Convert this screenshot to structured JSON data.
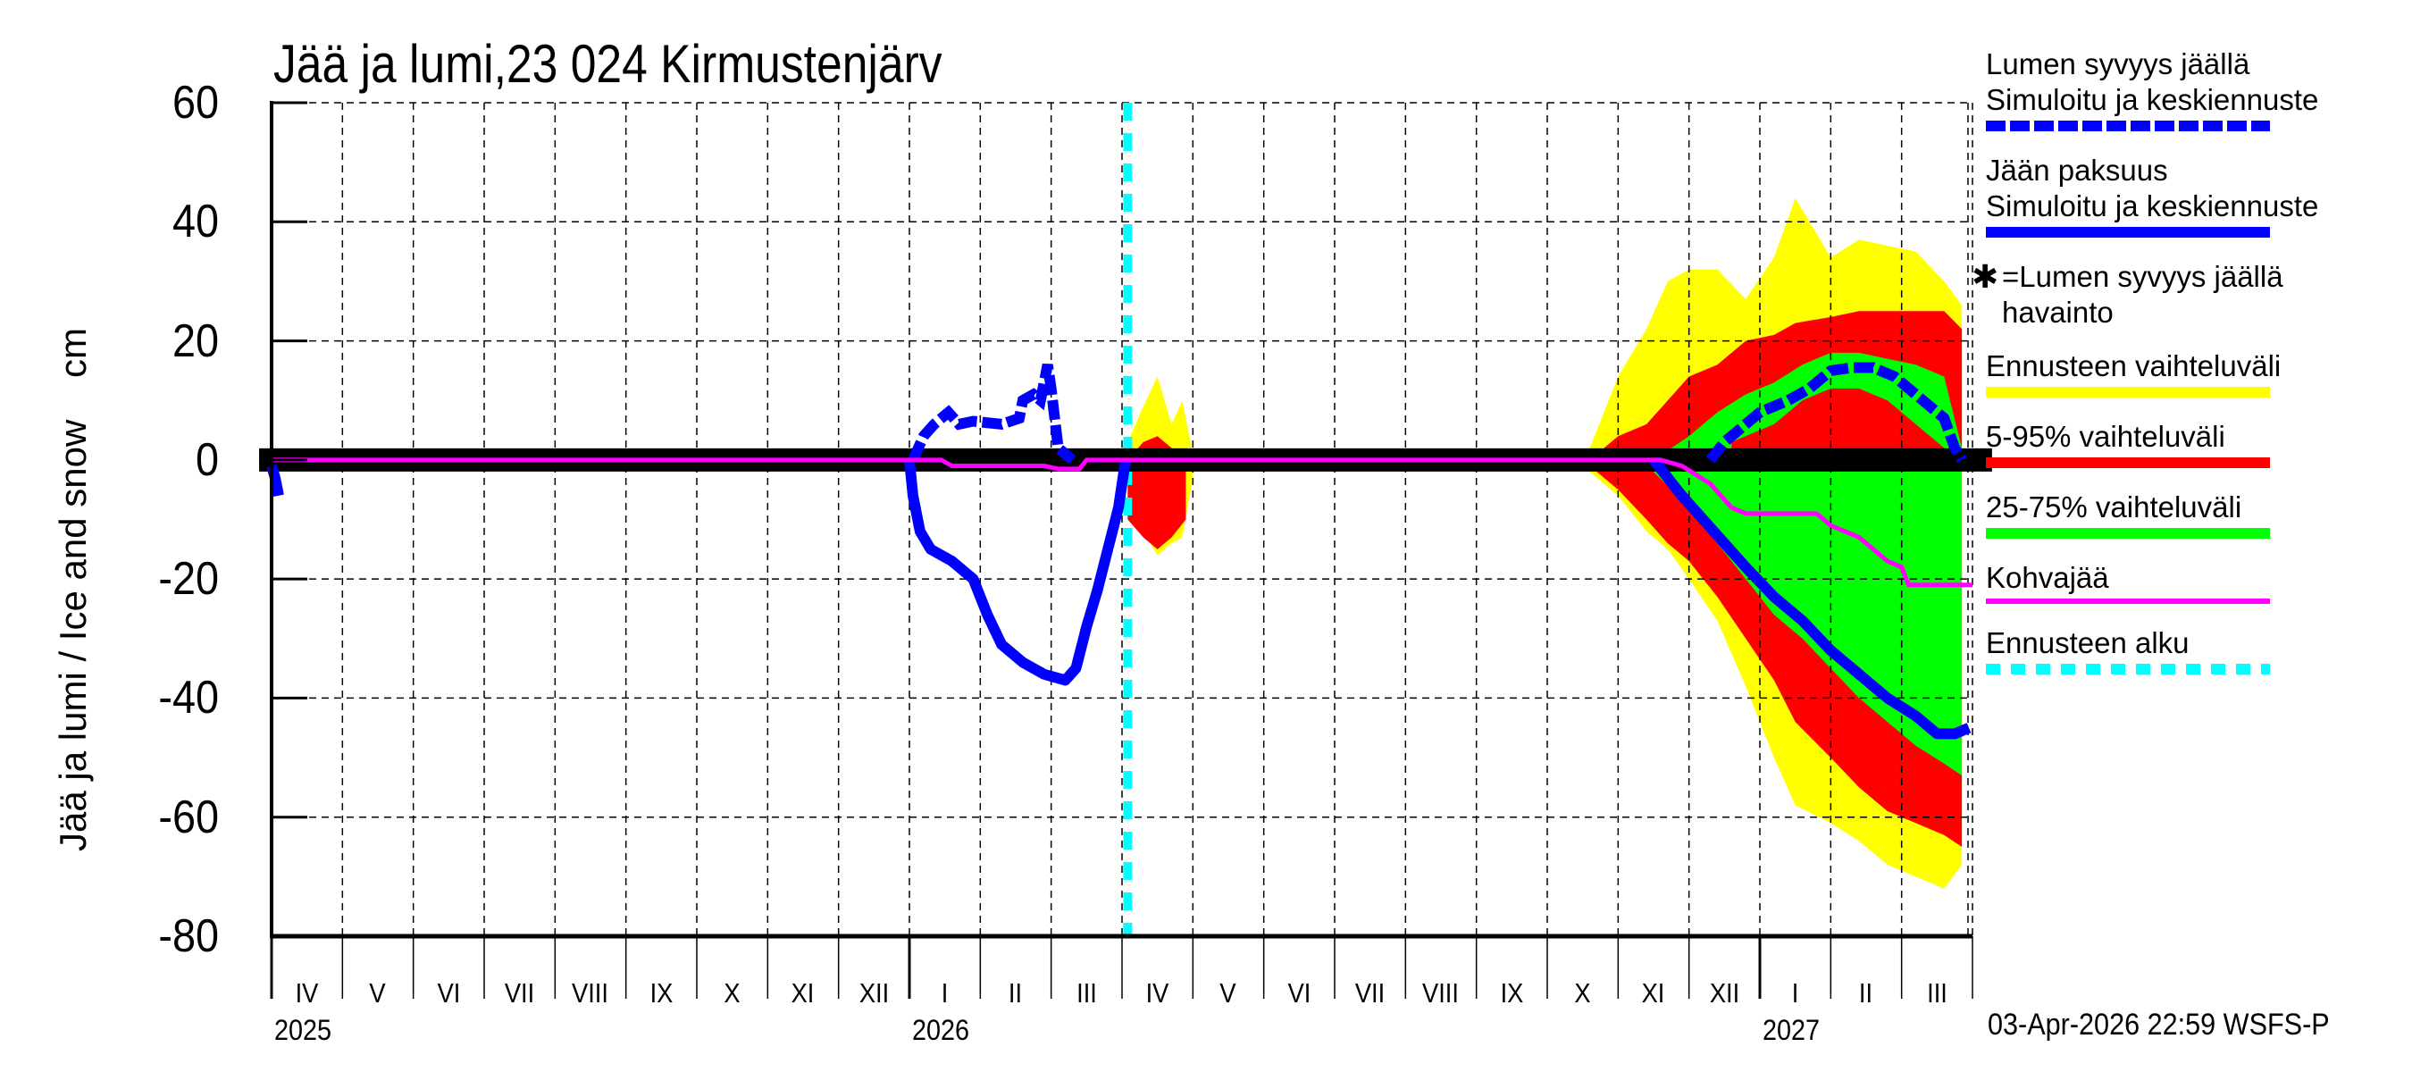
{
  "title": "Jää ja lumi,23 024 Kirmustenjärv",
  "y_axis": {
    "label": "Jää ja lumi / Ice and snow    cm",
    "ticks": [
      "60",
      "40",
      "20",
      "0",
      "-20",
      "-40",
      "-60",
      "-80"
    ]
  },
  "x_axis": {
    "months": [
      "IV",
      "V",
      "VI",
      "VII",
      "VIII",
      "IX",
      "X",
      "XI",
      "XII",
      "I",
      "II",
      "III",
      "IV",
      "V",
      "VI",
      "VII",
      "VIII",
      "IX",
      "X",
      "XI",
      "XII",
      "I",
      "II",
      "III"
    ],
    "years": [
      {
        "label": "2025",
        "month_index": 0
      },
      {
        "label": "2026",
        "month_index": 9
      },
      {
        "label": "2027",
        "month_index": 21
      }
    ]
  },
  "timestamp": "03-Apr-2026 22:59 WSFS-P",
  "colors": {
    "snow": "#0000ff",
    "ice": "#0000ff",
    "range_full": "#ffff00",
    "range_5_95": "#ff0000",
    "range_25_75": "#00ff00",
    "slush_ice": "#ff00ff",
    "forecast_start": "#00ffff",
    "observation": "#000000"
  },
  "legend": [
    {
      "text": "Lumen syvyys jäällä\nSimuloitu ja keskiennuste",
      "style": "dash-blue"
    },
    {
      "text": "Jään paksuus\nSimuloitu ja keskiennuste",
      "style": "solid-blue"
    },
    {
      "text": "=Lumen syvyys jäällä\nhavainto",
      "style": "star",
      "symbol": "✱"
    },
    {
      "text": "Ennusteen vaihteluväli",
      "style": "yellow"
    },
    {
      "text": "5-95% vaihteluväli",
      "style": "red"
    },
    {
      "text": "25-75% vaihteluväli",
      "style": "green"
    },
    {
      "text": "Kohvajää",
      "style": "magenta"
    },
    {
      "text": "Ennusteen alku",
      "style": "dash-cyan"
    }
  ],
  "chart_data": {
    "type": "area",
    "title": "Jää ja lumi,23 024 Kirmustenjärv",
    "xlabel": "",
    "ylabel": "Jää ja lumi / Ice and snow cm",
    "ylim": [
      -80,
      60
    ],
    "xlim": [
      "2025-04-01",
      "2027-04-01"
    ],
    "x_unit": "months since 2025-04-01",
    "grid": true,
    "legend_position": "right",
    "forecast_start_month": 12.08,
    "series": [
      {
        "name": "Lumen syvyys jäällä (simuloitu ja keskiennuste)",
        "style": "dashed",
        "segments": [
          [
            [
              9.05,
              0
            ],
            [
              9.2,
              4
            ],
            [
              9.35,
              6
            ],
            [
              9.55,
              8
            ],
            [
              9.7,
              6
            ],
            [
              9.9,
              6.5
            ],
            [
              10.3,
              6
            ],
            [
              10.55,
              7
            ],
            [
              10.6,
              10
            ],
            [
              10.75,
              11
            ],
            [
              10.85,
              10
            ],
            [
              10.95,
              16
            ],
            [
              11.0,
              12
            ],
            [
              11.05,
              7
            ],
            [
              11.1,
              2
            ],
            [
              11.3,
              0
            ]
          ],
          [
            [
              20.3,
              0
            ],
            [
              20.5,
              3
            ],
            [
              20.8,
              6
            ],
            [
              21.0,
              8
            ],
            [
              21.4,
              10
            ],
            [
              21.7,
              12
            ],
            [
              22.0,
              15
            ],
            [
              22.3,
              15.5
            ],
            [
              22.6,
              15.5
            ],
            [
              22.9,
              14
            ],
            [
              23.3,
              10
            ],
            [
              23.6,
              7
            ],
            [
              23.75,
              2
            ],
            [
              23.85,
              0
            ]
          ]
        ]
      },
      {
        "name": "Jään paksuus (simuloitu ja keskiennuste)",
        "style": "solid",
        "segments": [
          [
            [
              0,
              -1
            ],
            [
              0.05,
              -3
            ],
            [
              0.1,
              -6
            ]
          ],
          [
            [
              9.0,
              0
            ],
            [
              9.05,
              -6
            ],
            [
              9.15,
              -12
            ],
            [
              9.3,
              -15
            ],
            [
              9.6,
              -17
            ],
            [
              9.9,
              -20
            ],
            [
              10.1,
              -26
            ],
            [
              10.3,
              -31
            ],
            [
              10.6,
              -34
            ],
            [
              10.9,
              -36
            ],
            [
              11.2,
              -37
            ],
            [
              11.35,
              -35
            ],
            [
              11.5,
              -28
            ],
            [
              11.65,
              -22
            ],
            [
              11.8,
              -15
            ],
            [
              11.95,
              -8
            ],
            [
              12.05,
              0
            ]
          ],
          [
            [
              19.5,
              0
            ],
            [
              19.7,
              -3
            ],
            [
              19.9,
              -6
            ],
            [
              20.2,
              -10
            ],
            [
              20.5,
              -14
            ],
            [
              20.8,
              -18
            ],
            [
              21.2,
              -23
            ],
            [
              21.6,
              -27
            ],
            [
              22.0,
              -32
            ],
            [
              22.4,
              -36
            ],
            [
              22.8,
              -40
            ],
            [
              23.2,
              -43
            ],
            [
              23.5,
              -46
            ],
            [
              23.75,
              -46
            ],
            [
              23.95,
              -45
            ]
          ]
        ]
      },
      {
        "name": "Kohvajää",
        "style": "solid",
        "points": [
          [
            0,
            0
          ],
          [
            9.45,
            0
          ],
          [
            9.6,
            -1
          ],
          [
            10.9,
            -1
          ],
          [
            11.1,
            -1.5
          ],
          [
            11.4,
            -1.5
          ],
          [
            11.5,
            0
          ],
          [
            19.6,
            0
          ],
          [
            19.9,
            -1
          ],
          [
            20.3,
            -4
          ],
          [
            20.6,
            -8
          ],
          [
            20.8,
            -9
          ],
          [
            21.8,
            -9
          ],
          [
            22.0,
            -11
          ],
          [
            22.4,
            -13
          ],
          [
            22.6,
            -15
          ],
          [
            22.8,
            -17
          ],
          [
            23.0,
            -18
          ],
          [
            23.1,
            -21
          ],
          [
            24.0,
            -21
          ]
        ]
      },
      {
        "name": "Ennusteen vaihteluväli",
        "type": "band",
        "segments": [
          {
            "x": [
              12.08,
              12.3,
              12.5,
              12.7,
              12.85,
              13.0
            ],
            "upper": [
              3,
              9,
              14,
              6,
              10,
              1
            ],
            "lower": [
              -3,
              -12,
              -16,
              -14,
              -13,
              -3
            ]
          },
          {
            "x": [
              18.6,
              19.0,
              19.4,
              19.7,
              20.0,
              20.4,
              20.8,
              21.2,
              21.5,
              22.0,
              22.4,
              22.8,
              23.2,
              23.6,
              23.85
            ],
            "upper": [
              2,
              14,
              22,
              30,
              32,
              32,
              27,
              34,
              44,
              34,
              37,
              36,
              35,
              30,
              26
            ],
            "lower": [
              -2,
              -6,
              -12,
              -15,
              -20,
              -27,
              -38,
              -50,
              -58,
              -61,
              -64,
              -68,
              -70,
              -72,
              -68
            ]
          }
        ]
      },
      {
        "name": "5-95% vaihteluväli",
        "type": "band",
        "segments": [
          {
            "x": [
              12.08,
              12.3,
              12.5,
              12.7,
              12.9
            ],
            "upper": [
              0,
              3,
              4,
              2,
              0
            ],
            "lower": [
              -10,
              -13,
              -15,
              -13,
              -10
            ]
          },
          {
            "x": [
              18.6,
              19.0,
              19.4,
              19.7,
              20.0,
              20.4,
              20.8,
              21.2,
              21.5,
              22.0,
              22.4,
              22.8,
              23.2,
              23.6,
              23.85
            ],
            "upper": [
              0,
              4,
              6,
              10,
              14,
              16,
              20,
              21,
              23,
              24,
              25,
              25,
              25,
              25,
              22
            ],
            "lower": [
              -1,
              -5,
              -10,
              -14,
              -17,
              -23,
              -30,
              -37,
              -44,
              -50,
              -55,
              -59,
              -61,
              -63,
              -65
            ]
          }
        ]
      },
      {
        "name": "25-75% vaihteluväli",
        "type": "band",
        "segments": [
          {
            "x": [
              19.5,
              20.0,
              20.4,
              20.8,
              21.2,
              21.6,
              22.0,
              22.4,
              22.8,
              23.2,
              23.6,
              23.85
            ],
            "upper": [
              0,
              4,
              8,
              11,
              13,
              16,
              18,
              18,
              17,
              16,
              14,
              2
            ],
            "lower": [
              -2,
              -8,
              -14,
              -20,
              -26,
              -30,
              -35,
              -40,
              -44,
              -48,
              -51,
              -53
            ]
          }
        ]
      },
      {
        "name": "5-95% inner band above ice (red under green)",
        "type": "band",
        "segments": [
          {
            "x": [
              20.6,
              21.2,
              21.6,
              22.0,
              22.4,
              22.8,
              23.2,
              23.6
            ],
            "upper": [
              3,
              6,
              10,
              12,
              12,
              10,
              6,
              2
            ],
            "lower": [
              0,
              0,
              0,
              0,
              0,
              0,
              0,
              0
            ]
          }
        ]
      },
      {
        "name": "Lumen syvyys jäällä havainto",
        "type": "observation-band",
        "value": 0,
        "x_range": [
          -0.1,
          24.2
        ]
      }
    ]
  }
}
